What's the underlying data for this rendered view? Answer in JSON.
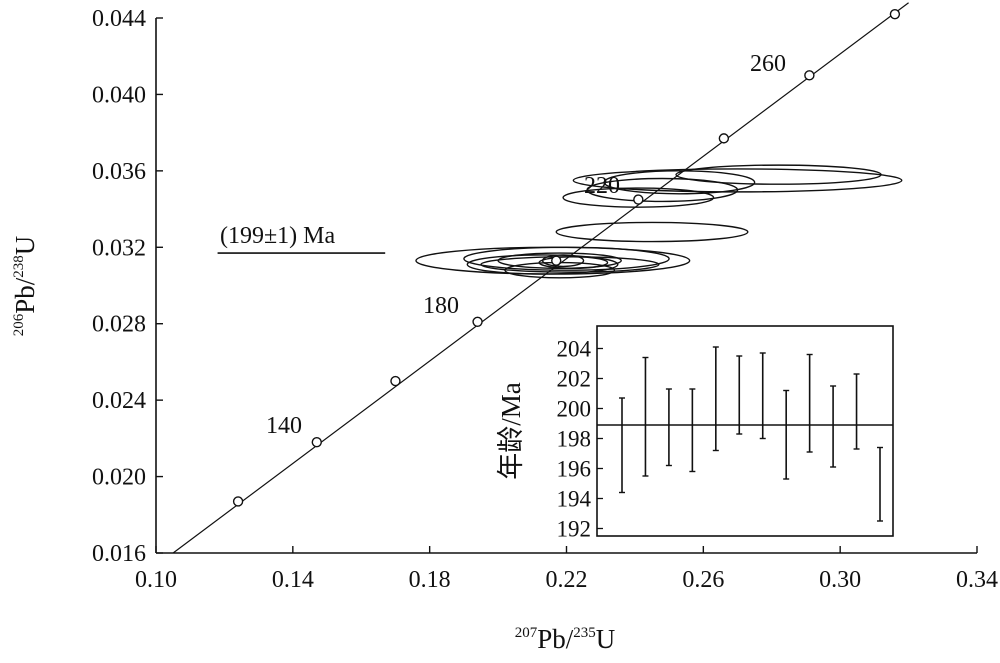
{
  "chart_data": [
    {
      "type": "scatter",
      "title": "",
      "xlabel": {
        "mass1": "207",
        "elem1": "Pb/",
        "mass2": "235",
        "elem2": "U"
      },
      "ylabel": {
        "mass1": "206",
        "elem1": "Pb/",
        "mass2": "238",
        "elem2": "U"
      },
      "xlim": [
        0.1,
        0.34
      ],
      "ylim": [
        0.016,
        0.044
      ],
      "xticks": [
        "0.10",
        "0.14",
        "0.18",
        "0.22",
        "0.26",
        "0.30",
        "0.34"
      ],
      "yticks": [
        "0.016",
        "0.020",
        "0.024",
        "0.028",
        "0.032",
        "0.036",
        "0.040",
        "0.044"
      ],
      "concordia": {
        "label_ages": [
          "140",
          "180",
          "220",
          "260"
        ],
        "age_markers": [
          {
            "age": 120,
            "x": 0.124,
            "y": 0.0187
          },
          {
            "age": 140,
            "x": 0.147,
            "y": 0.0218
          },
          {
            "age": 160,
            "x": 0.17,
            "y": 0.025
          },
          {
            "age": 180,
            "x": 0.194,
            "y": 0.0281
          },
          {
            "age": 200,
            "x": 0.217,
            "y": 0.0313
          },
          {
            "age": 220,
            "x": 0.241,
            "y": 0.0345
          },
          {
            "age": 240,
            "x": 0.266,
            "y": 0.0377
          },
          {
            "age": 260,
            "x": 0.291,
            "y": 0.041
          },
          {
            "age": 280,
            "x": 0.316,
            "y": 0.0442
          }
        ],
        "line_start": {
          "x": 0.105,
          "y": 0.016
        },
        "line_end": {
          "x": 0.32,
          "y": 0.0448
        }
      },
      "error_ellipses": [
        {
          "cx": 0.27,
          "cy": 0.0355,
          "rx": 0.048,
          "ry": 0.0006
        },
        {
          "cx": 0.282,
          "cy": 0.0358,
          "rx": 0.03,
          "ry": 0.0005
        },
        {
          "cx": 0.248,
          "cy": 0.035,
          "rx": 0.022,
          "ry": 0.0006
        },
        {
          "cx": 0.253,
          "cy": 0.0354,
          "rx": 0.022,
          "ry": 0.0006
        },
        {
          "cx": 0.241,
          "cy": 0.0346,
          "rx": 0.022,
          "ry": 0.0005
        },
        {
          "cx": 0.245,
          "cy": 0.0328,
          "rx": 0.028,
          "ry": 0.0005
        },
        {
          "cx": 0.216,
          "cy": 0.0313,
          "rx": 0.04,
          "ry": 0.0007
        },
        {
          "cx": 0.22,
          "cy": 0.0314,
          "rx": 0.03,
          "ry": 0.0006
        },
        {
          "cx": 0.213,
          "cy": 0.0311,
          "rx": 0.022,
          "ry": 0.0005
        },
        {
          "cx": 0.218,
          "cy": 0.0313,
          "rx": 0.018,
          "ry": 0.0004
        },
        {
          "cx": 0.221,
          "cy": 0.0311,
          "rx": 0.026,
          "ry": 0.0004
        },
        {
          "cx": 0.218,
          "cy": 0.0308,
          "rx": 0.016,
          "ry": 0.0004
        },
        {
          "cx": 0.222,
          "cy": 0.0312,
          "rx": 0.01,
          "ry": 0.0003
        },
        {
          "cx": 0.219,
          "cy": 0.0313,
          "rx": 0.006,
          "ry": 0.0003
        }
      ],
      "annotation": {
        "text": "(199±1) Ma",
        "underline_x": [
          0.118,
          0.167
        ],
        "underline_y": 0.0317
      }
    },
    {
      "type": "scatter",
      "title": "",
      "ylabel": "年龄/Ma",
      "xlabel": "",
      "ylim": [
        191.5,
        205.5
      ],
      "yticks": [
        "204",
        "202",
        "200",
        "198",
        "196",
        "194",
        "192"
      ],
      "mean": 198.9,
      "error_bars": [
        {
          "low": 194.4,
          "high": 200.7
        },
        {
          "low": 195.5,
          "high": 203.4
        },
        {
          "low": 196.2,
          "high": 201.3
        },
        {
          "low": 195.8,
          "high": 201.3
        },
        {
          "low": 197.2,
          "high": 204.1
        },
        {
          "low": 198.3,
          "high": 203.5
        },
        {
          "low": 198.0,
          "high": 203.7
        },
        {
          "low": 195.3,
          "high": 201.2
        },
        {
          "low": 197.1,
          "high": 203.6
        },
        {
          "low": 196.1,
          "high": 201.5
        },
        {
          "low": 197.3,
          "high": 202.3
        },
        {
          "low": 192.5,
          "high": 197.4
        }
      ]
    }
  ]
}
